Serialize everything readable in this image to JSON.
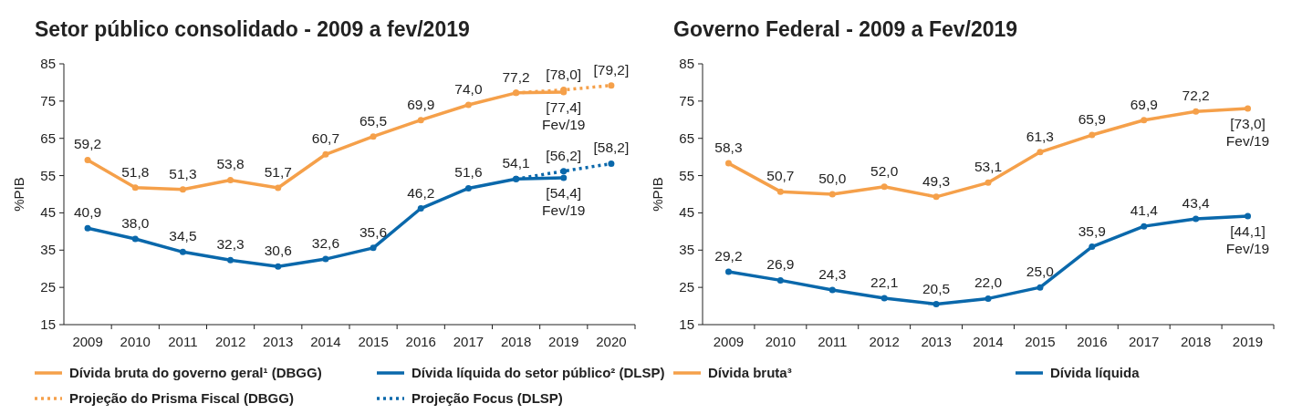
{
  "chart_data": [
    {
      "type": "line",
      "title": "Setor público consolidado - 2009 a fev/2019",
      "ylabel": "%PIB",
      "categories": [
        "2009",
        "2010",
        "2011",
        "2012",
        "2013",
        "2014",
        "2015",
        "2016",
        "2017",
        "2018",
        "2019",
        "2020"
      ],
      "ylim": [
        15,
        85
      ],
      "yticks": [
        15,
        25,
        35,
        45,
        55,
        65,
        75,
        85
      ],
      "grid": false,
      "legend": "bottom",
      "marker": "circle",
      "series": [
        {
          "name": "Dívida bruta do governo geral¹ (DBGG)",
          "color": "#f5a04a",
          "line_style": "solid",
          "values": [
            59.2,
            51.8,
            51.3,
            53.8,
            51.7,
            60.7,
            65.5,
            69.9,
            74.0,
            77.2,
            77.4,
            null
          ],
          "value_labels": [
            "59,2",
            "51,8",
            "51,3",
            "53,8",
            "51,7",
            "60,7",
            "65,5",
            "69,9",
            "74,0",
            "77,2",
            "[77,4]\nFev/19",
            null
          ]
        },
        {
          "name": "Dívida líquida do setor público² (DLSP)",
          "color": "#0a68ab",
          "line_style": "solid",
          "values": [
            40.9,
            38.0,
            34.5,
            32.3,
            30.6,
            32.6,
            35.6,
            46.2,
            51.6,
            54.1,
            54.4,
            null
          ],
          "value_labels": [
            "40,9",
            "38,0",
            "34,5",
            "32,3",
            "30,6",
            "32,6",
            "35,6",
            "46,2",
            "51,6",
            "54,1",
            "[54,4]\nFev/19",
            null
          ]
        },
        {
          "name": "Projeção do Prisma Fiscal (DBGG)",
          "color": "#f5a04a",
          "line_style": "dotted",
          "values": [
            null,
            null,
            null,
            null,
            null,
            null,
            null,
            null,
            null,
            77.2,
            78.0,
            79.2
          ],
          "value_labels": [
            null,
            null,
            null,
            null,
            null,
            null,
            null,
            null,
            null,
            null,
            "[78,0]",
            "[79,2]"
          ]
        },
        {
          "name": "Projeção Focus (DLSP)",
          "color": "#0a68ab",
          "line_style": "dotted",
          "values": [
            null,
            null,
            null,
            null,
            null,
            null,
            null,
            null,
            null,
            54.1,
            56.2,
            58.2
          ],
          "value_labels": [
            null,
            null,
            null,
            null,
            null,
            null,
            null,
            null,
            null,
            null,
            "[56,2]",
            "[58,2]"
          ]
        }
      ]
    },
    {
      "type": "line",
      "title": "Governo Federal - 2009 a Fev/2019",
      "ylabel": "%PIB",
      "categories": [
        "2009",
        "2010",
        "2011",
        "2012",
        "2013",
        "2014",
        "2015",
        "2016",
        "2017",
        "2018",
        "2019"
      ],
      "ylim": [
        15,
        85
      ],
      "yticks": [
        15,
        25,
        35,
        45,
        55,
        65,
        75,
        85
      ],
      "grid": false,
      "legend": "bottom",
      "marker": "circle",
      "series": [
        {
          "name": "Dívida bruta³",
          "color": "#f5a04a",
          "line_style": "solid",
          "values": [
            58.3,
            50.7,
            50.0,
            52.0,
            49.3,
            53.1,
            61.3,
            65.9,
            69.9,
            72.2,
            73.0
          ],
          "value_labels": [
            "58,3",
            "50,7",
            "50,0",
            "52,0",
            "49,3",
            "53,1",
            "61,3",
            "65,9",
            "69,9",
            "72,2",
            "[73,0]\nFev/19"
          ]
        },
        {
          "name": "Dívida líquida",
          "color": "#0a68ab",
          "line_style": "solid",
          "values": [
            29.2,
            26.9,
            24.3,
            22.1,
            20.5,
            22.0,
            25.0,
            35.9,
            41.4,
            43.4,
            44.1
          ],
          "value_labels": [
            "29,2",
            "26,9",
            "24,3",
            "22,1",
            "20,5",
            "22,0",
            "25,0",
            "35,9",
            "41,4",
            "43,4",
            "[44,1]\nFev/19"
          ]
        }
      ]
    }
  ]
}
